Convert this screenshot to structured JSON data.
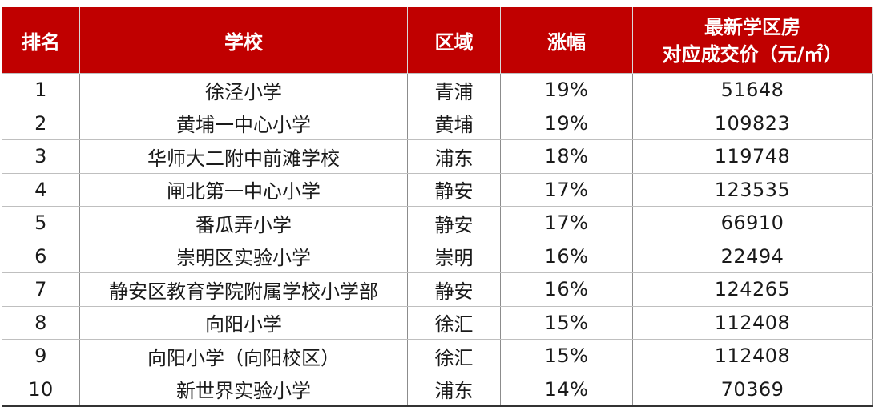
{
  "table": {
    "headers": {
      "rank": "排名",
      "school": "学校",
      "district": "区域",
      "change": "涨幅",
      "price_line1": "最新学区房",
      "price_line2": "对应成交价（元/㎡）"
    },
    "rows": [
      {
        "rank": "1",
        "school": "徐泾小学",
        "district": "青浦",
        "change": "19%",
        "price": "51648"
      },
      {
        "rank": "2",
        "school": "黄埔一中心小学",
        "district": "黄埔",
        "change": "19%",
        "price": "109823"
      },
      {
        "rank": "3",
        "school": "华师大二附中前滩学校",
        "district": "浦东",
        "change": "18%",
        "price": "119748"
      },
      {
        "rank": "4",
        "school": "闸北第一中心小学",
        "district": "静安",
        "change": "17%",
        "price": "123535"
      },
      {
        "rank": "5",
        "school": "番瓜弄小学",
        "district": "静安",
        "change": "17%",
        "price": "66910"
      },
      {
        "rank": "6",
        "school": "崇明区实验小学",
        "district": "崇明",
        "change": "16%",
        "price": "22494"
      },
      {
        "rank": "7",
        "school": "静安区教育学院附属学校小学部",
        "district": "静安",
        "change": "16%",
        "price": "124265"
      },
      {
        "rank": "8",
        "school": "向阳小学",
        "district": "徐汇",
        "change": "15%",
        "price": "112408"
      },
      {
        "rank": "9",
        "school": "向阳小学（向阳校区）",
        "district": "徐汇",
        "change": "15%",
        "price": "112408"
      },
      {
        "rank": "10",
        "school": "新世界实验小学",
        "district": "浦东",
        "change": "14%",
        "price": "70369"
      }
    ]
  },
  "colors": {
    "header_bg": "#c00000",
    "header_text": "#ffffff",
    "body_text": "#1a1a1a"
  }
}
